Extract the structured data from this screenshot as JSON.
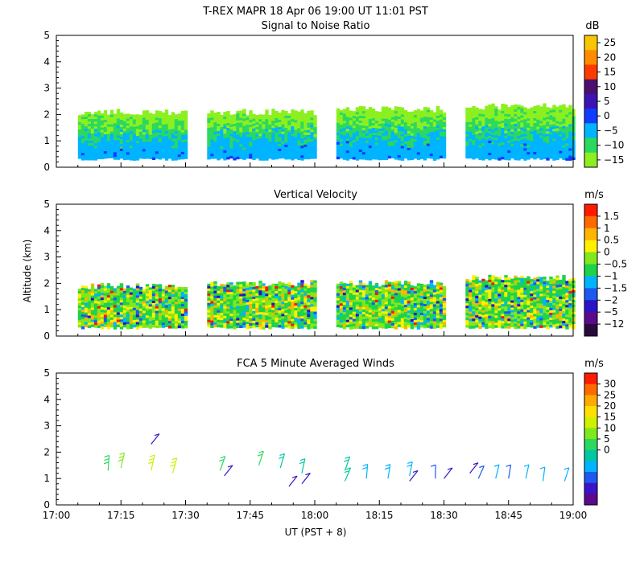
{
  "title": "T-REX   MAPR 18 Apr 06   19:00 UT   11:01   PST",
  "ylabel": "Altitude (km)",
  "xlabel": "UT  (PST + 8)",
  "chart_data": [
    {
      "type": "heatmap",
      "title": "Signal to Noise Ratio",
      "colorbar_unit": "dB",
      "colorbar_ticks": [
        "25",
        "20",
        "15",
        "10",
        "5",
        "0",
        "−5",
        "−10",
        "−15"
      ],
      "colors": [
        "#f7c600",
        "#ff8c00",
        "#ff3a00",
        "#4b0f6e",
        "#3b14b4",
        "#0f3cff",
        "#00b4ff",
        "#2cd860",
        "#8cf020"
      ],
      "xlim": [
        "17:00",
        "19:00"
      ],
      "ylim": [
        0,
        5
      ],
      "segments": [
        {
          "start": "17:05",
          "end": "17:30",
          "top_km": 2.1,
          "base_km": 0.35
        },
        {
          "start": "17:35",
          "end": "18:00",
          "top_km": 2.1,
          "base_km": 0.35
        },
        {
          "start": "18:05",
          "end": "18:30",
          "top_km": 2.2,
          "base_km": 0.35
        },
        {
          "start": "18:35",
          "end": "19:00",
          "top_km": 2.3,
          "base_km": 0.35
        }
      ]
    },
    {
      "type": "heatmap",
      "title": "Vertical Velocity",
      "colorbar_unit": "m/s",
      "colorbar_ticks": [
        "1.5",
        "1",
        "0.5",
        "0",
        "−0.5",
        "−1",
        "−1.5",
        "−2",
        "−5",
        "−12"
      ],
      "colors": [
        "#ff1a00",
        "#ff6a00",
        "#ffb400",
        "#fff000",
        "#80e81c",
        "#1ed24a",
        "#00b4ff",
        "#1e5af0",
        "#2a14c8",
        "#5a0a8c",
        "#2a0a3c"
      ],
      "xlim": [
        "17:00",
        "19:00"
      ],
      "ylim": [
        0,
        5
      ],
      "segments": [
        {
          "start": "17:05",
          "end": "17:30",
          "top_km": 1.9,
          "base_km": 0.35
        },
        {
          "start": "17:35",
          "end": "18:00",
          "top_km": 2.0,
          "base_km": 0.35
        },
        {
          "start": "18:05",
          "end": "18:30",
          "top_km": 2.0,
          "base_km": 0.35
        },
        {
          "start": "18:35",
          "end": "19:00",
          "top_km": 2.2,
          "base_km": 0.35
        }
      ]
    },
    {
      "type": "scatter",
      "title": "FCA 5 Minute Averaged Winds",
      "colorbar_unit": "m/s",
      "colorbar_ticks": [
        "30",
        "25",
        "20",
        "15",
        "10",
        "5",
        "0"
      ],
      "colors": [
        "#ff1a00",
        "#ff6a00",
        "#ffaa00",
        "#ffe000",
        "#d0f000",
        "#80e81c",
        "#2cd860",
        "#00c8a0",
        "#00b4ff",
        "#1e5af0",
        "#3a14c8",
        "#5a0a8c"
      ],
      "xlim": [
        "17:00",
        "19:00"
      ],
      "ylim": [
        0,
        5
      ],
      "barbs": [
        {
          "time": "17:12",
          "alt_km": 1.3,
          "speed_ms": 15
        },
        {
          "time": "17:15",
          "alt_km": 1.4,
          "speed_ms": 16
        },
        {
          "time": "17:22",
          "alt_km": 2.3,
          "speed_ms": 2
        },
        {
          "time": "17:22",
          "alt_km": 1.3,
          "speed_ms": 19
        },
        {
          "time": "17:27",
          "alt_km": 1.2,
          "speed_ms": 18
        },
        {
          "time": "17:38",
          "alt_km": 1.3,
          "speed_ms": 14
        },
        {
          "time": "17:39",
          "alt_km": 1.1,
          "speed_ms": 3
        },
        {
          "time": "17:47",
          "alt_km": 1.5,
          "speed_ms": 13
        },
        {
          "time": "17:52",
          "alt_km": 1.4,
          "speed_ms": 12
        },
        {
          "time": "17:54",
          "alt_km": 0.7,
          "speed_ms": 2
        },
        {
          "time": "17:57",
          "alt_km": 1.2,
          "speed_ms": 12
        },
        {
          "time": "17:57",
          "alt_km": 0.8,
          "speed_ms": 4
        },
        {
          "time": "18:07",
          "alt_km": 1.3,
          "speed_ms": 11
        },
        {
          "time": "18:07",
          "alt_km": 0.9,
          "speed_ms": 10
        },
        {
          "time": "18:12",
          "alt_km": 1.0,
          "speed_ms": 9
        },
        {
          "time": "18:17",
          "alt_km": 1.0,
          "speed_ms": 9
        },
        {
          "time": "18:22",
          "alt_km": 1.1,
          "speed_ms": 9
        },
        {
          "time": "18:22",
          "alt_km": 0.9,
          "speed_ms": 3
        },
        {
          "time": "18:28",
          "alt_km": 1.0,
          "speed_ms": 5
        },
        {
          "time": "18:30",
          "alt_km": 1.0,
          "speed_ms": 4
        },
        {
          "time": "18:36",
          "alt_km": 1.2,
          "speed_ms": 3
        },
        {
          "time": "18:38",
          "alt_km": 1.0,
          "speed_ms": 6
        },
        {
          "time": "18:42",
          "alt_km": 1.0,
          "speed_ms": 8
        },
        {
          "time": "18:45",
          "alt_km": 1.0,
          "speed_ms": 6
        },
        {
          "time": "18:49",
          "alt_km": 1.0,
          "speed_ms": 8
        },
        {
          "time": "18:53",
          "alt_km": 0.9,
          "speed_ms": 8
        },
        {
          "time": "18:58",
          "alt_km": 0.9,
          "speed_ms": 8
        }
      ]
    }
  ],
  "x_ticks": [
    "17:00",
    "17:15",
    "17:30",
    "17:45",
    "18:00",
    "18:15",
    "18:30",
    "18:45",
    "19:00"
  ],
  "y_ticks": [
    "0",
    "1",
    "2",
    "3",
    "4",
    "5"
  ]
}
